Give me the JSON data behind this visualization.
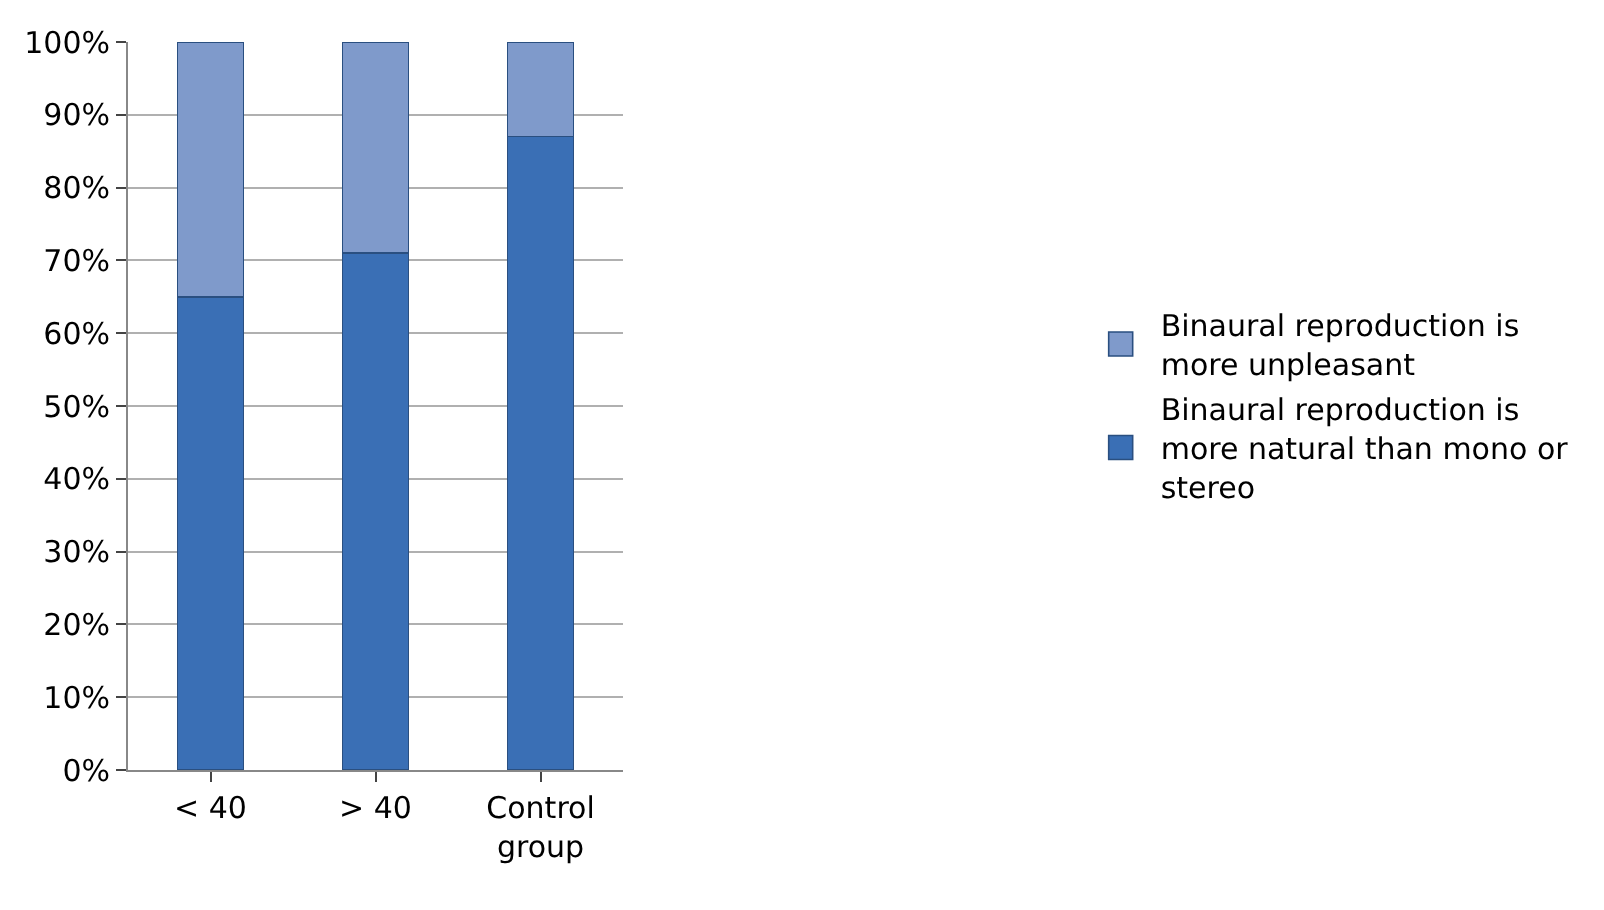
{
  "chart_data": {
    "type": "bar",
    "stacked": true,
    "categories": [
      "< 40",
      "> 40",
      "Control group"
    ],
    "series": [
      {
        "name": "Binaural reproduction is more natural than mono or stereo",
        "color": "#3a6fb5",
        "values": [
          65,
          71,
          87
        ]
      },
      {
        "name": "Binaural reproduction is more unpleasant",
        "color": "#7f9acb",
        "values": [
          35,
          29,
          13
        ]
      }
    ],
    "ylim": [
      0,
      100
    ],
    "yticks": [
      {
        "value": 0,
        "label": "0%"
      },
      {
        "value": 10,
        "label": "10%"
      },
      {
        "value": 20,
        "label": "20%"
      },
      {
        "value": 30,
        "label": "30%"
      },
      {
        "value": 40,
        "label": "40%"
      },
      {
        "value": 50,
        "label": "50%"
      },
      {
        "value": 60,
        "label": "60%"
      },
      {
        "value": 70,
        "label": "70%"
      },
      {
        "value": 80,
        "label": "80%"
      },
      {
        "value": 90,
        "label": "90%"
      },
      {
        "value": 100,
        "label": "100%"
      }
    ],
    "grid": "y",
    "legend": "right"
  }
}
